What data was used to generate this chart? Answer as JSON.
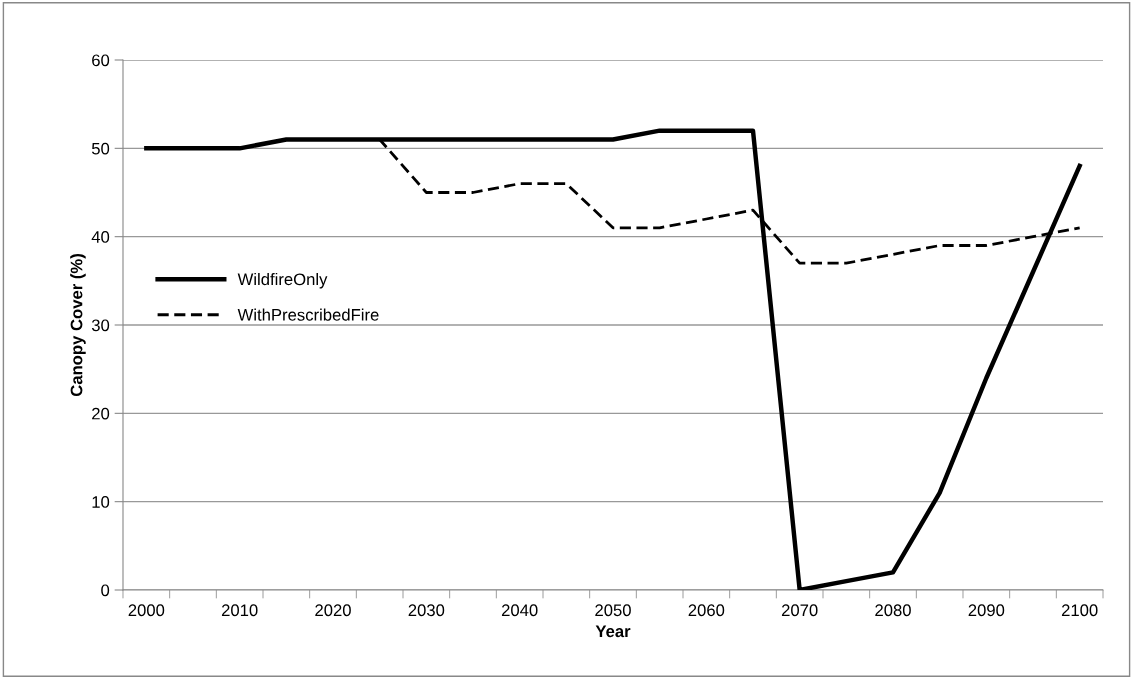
{
  "chart_data": {
    "type": "line",
    "xlabel": "Year",
    "ylabel": "Canopy Cover (%)",
    "categories": [
      "2000",
      null,
      "2010",
      null,
      "2020",
      null,
      "2030",
      null,
      "2040",
      null,
      "2050",
      null,
      "2060",
      null,
      "2070",
      null,
      "2080",
      null,
      "2090",
      null,
      "2100"
    ],
    "series": [
      {
        "name": "WildfireOnly",
        "color": "#000000",
        "line_style": "solid",
        "values": [
          50,
          50,
          50,
          51,
          51,
          51,
          51,
          51,
          51,
          51,
          51,
          52,
          52,
          52,
          0,
          1,
          2,
          11,
          24,
          36,
          48
        ]
      },
      {
        "name": "WithPrescribedFire",
        "color": "#000000",
        "line_style": "dashed",
        "values": [
          50,
          50,
          50,
          51,
          51,
          51,
          45,
          45,
          46,
          46,
          41,
          41,
          42,
          43,
          37,
          37,
          38,
          39,
          39,
          40,
          41
        ]
      }
    ],
    "ylim": [
      0,
      60
    ],
    "yticks": [
      0,
      10,
      20,
      30,
      40,
      50,
      60
    ],
    "grid": "y",
    "legend": "left",
    "marker": "none"
  }
}
